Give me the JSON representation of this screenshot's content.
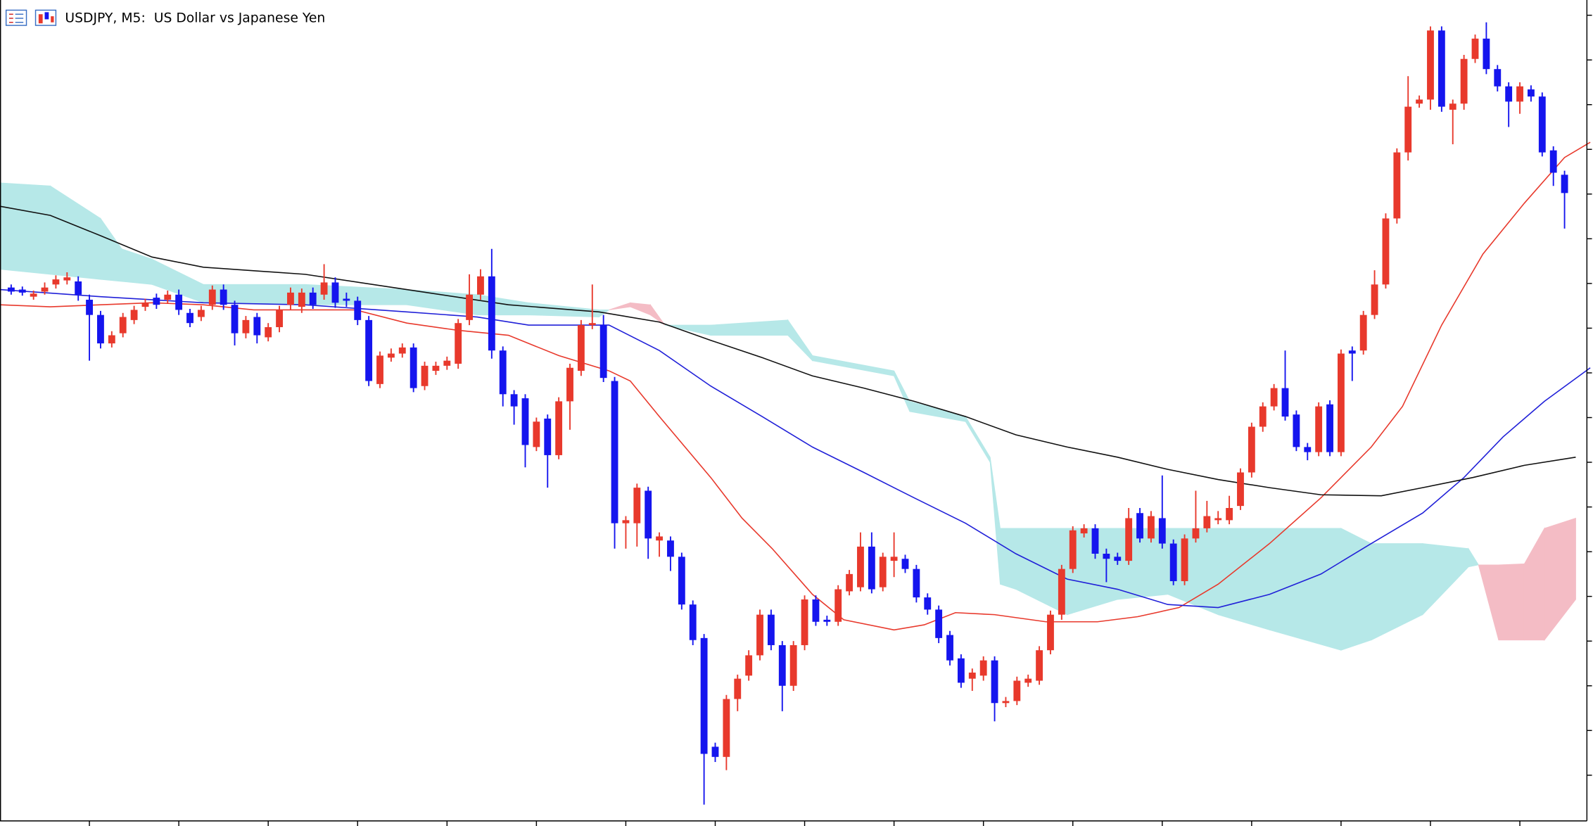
{
  "chart_data": {
    "type": "candlestick",
    "title": "USDJPY, M5:  US Dollar vs Japanese Yen",
    "up_color": "#e8392c",
    "down_color": "#1515ee",
    "xlim": [
      -1,
      141
    ],
    "ylim": [
      0,
      808
    ],
    "xticks": [
      7,
      15,
      23,
      31,
      39,
      47,
      55,
      63,
      71,
      79,
      87,
      95,
      103,
      111,
      119,
      127,
      135
    ],
    "yticks": [
      45,
      89,
      133,
      177,
      221,
      265,
      309,
      353,
      397,
      441,
      485,
      529,
      573,
      617,
      661,
      705,
      749,
      793
    ],
    "grid": false,
    "ohlc": [
      [
        525,
        528,
        518,
        521
      ],
      [
        523,
        526,
        517,
        520
      ],
      [
        516,
        522,
        513,
        519
      ],
      [
        521,
        530,
        518,
        525
      ],
      [
        528,
        537,
        524,
        533
      ],
      [
        532,
        540,
        528,
        535
      ],
      [
        531,
        536,
        512,
        518
      ],
      [
        513,
        518,
        453,
        498
      ],
      [
        498,
        502,
        465,
        470
      ],
      [
        470,
        482,
        466,
        478
      ],
      [
        480,
        500,
        476,
        496
      ],
      [
        493,
        507,
        489,
        503
      ],
      [
        506,
        514,
        502,
        510
      ],
      [
        515,
        519,
        504,
        508
      ],
      [
        513,
        522,
        509,
        518
      ],
      [
        518,
        523,
        498,
        503
      ],
      [
        500,
        504,
        486,
        490
      ],
      [
        496,
        507,
        492,
        503
      ],
      [
        508,
        527,
        503,
        523
      ],
      [
        523,
        528,
        503,
        508
      ],
      [
        508,
        512,
        468,
        480
      ],
      [
        480,
        497,
        475,
        493
      ],
      [
        496,
        500,
        470,
        478
      ],
      [
        476,
        490,
        472,
        486
      ],
      [
        486,
        507,
        481,
        503
      ],
      [
        508,
        525,
        503,
        520
      ],
      [
        506,
        524,
        500,
        520
      ],
      [
        520,
        525,
        504,
        508
      ],
      [
        518,
        548,
        513,
        530
      ],
      [
        530,
        535,
        505,
        510
      ],
      [
        514,
        520,
        506,
        512
      ],
      [
        512,
        516,
        488,
        493
      ],
      [
        493,
        497,
        428,
        433
      ],
      [
        430,
        462,
        426,
        458
      ],
      [
        456,
        465,
        452,
        460
      ],
      [
        460,
        470,
        456,
        466
      ],
      [
        466,
        470,
        422,
        426
      ],
      [
        428,
        452,
        424,
        448
      ],
      [
        443,
        452,
        439,
        448
      ],
      [
        448,
        457,
        444,
        453
      ],
      [
        450,
        494,
        445,
        490
      ],
      [
        493,
        538,
        488,
        518
      ],
      [
        518,
        543,
        513,
        536
      ],
      [
        536,
        563,
        455,
        463
      ],
      [
        463,
        467,
        408,
        420
      ],
      [
        420,
        424,
        390,
        408
      ],
      [
        416,
        420,
        348,
        370
      ],
      [
        368,
        397,
        364,
        393
      ],
      [
        396,
        400,
        328,
        360
      ],
      [
        360,
        417,
        356,
        413
      ],
      [
        413,
        450,
        385,
        446
      ],
      [
        443,
        493,
        438,
        488
      ],
      [
        488,
        528,
        484,
        490
      ],
      [
        488,
        498,
        432,
        436
      ],
      [
        433,
        437,
        268,
        293
      ],
      [
        293,
        300,
        268,
        296
      ],
      [
        293,
        332,
        270,
        328
      ],
      [
        325,
        329,
        258,
        278
      ],
      [
        276,
        284,
        260,
        280
      ],
      [
        276,
        280,
        246,
        260
      ],
      [
        260,
        264,
        208,
        213
      ],
      [
        213,
        217,
        173,
        178
      ],
      [
        180,
        184,
        16,
        66
      ],
      [
        73,
        77,
        58,
        63
      ],
      [
        63,
        124,
        50,
        120
      ],
      [
        120,
        144,
        108,
        140
      ],
      [
        143,
        168,
        138,
        163
      ],
      [
        163,
        208,
        158,
        203
      ],
      [
        203,
        208,
        168,
        173
      ],
      [
        173,
        177,
        108,
        133
      ],
      [
        133,
        177,
        128,
        173
      ],
      [
        173,
        222,
        168,
        218
      ],
      [
        218,
        222,
        192,
        196
      ],
      [
        198,
        202,
        192,
        196
      ],
      [
        196,
        232,
        192,
        228
      ],
      [
        226,
        247,
        222,
        243
      ],
      [
        230,
        284,
        226,
        270
      ],
      [
        270,
        284,
        224,
        228
      ],
      [
        230,
        264,
        226,
        260
      ],
      [
        256,
        284,
        240,
        260
      ],
      [
        258,
        262,
        244,
        248
      ],
      [
        248,
        252,
        215,
        220
      ],
      [
        220,
        224,
        203,
        208
      ],
      [
        208,
        212,
        175,
        180
      ],
      [
        183,
        187,
        153,
        158
      ],
      [
        160,
        164,
        131,
        136
      ],
      [
        140,
        150,
        128,
        146
      ],
      [
        143,
        162,
        138,
        158
      ],
      [
        158,
        162,
        98,
        116
      ],
      [
        116,
        122,
        112,
        118
      ],
      [
        118,
        142,
        114,
        138
      ],
      [
        136,
        144,
        132,
        140
      ],
      [
        138,
        172,
        134,
        168
      ],
      [
        168,
        207,
        164,
        203
      ],
      [
        203,
        252,
        198,
        248
      ],
      [
        248,
        290,
        244,
        286
      ],
      [
        283,
        292,
        279,
        288
      ],
      [
        288,
        292,
        258,
        263
      ],
      [
        263,
        268,
        235,
        258
      ],
      [
        260,
        264,
        252,
        256
      ],
      [
        256,
        308,
        252,
        298
      ],
      [
        303,
        308,
        274,
        278
      ],
      [
        278,
        305,
        274,
        300
      ],
      [
        298,
        340,
        268,
        273
      ],
      [
        273,
        277,
        232,
        236
      ],
      [
        236,
        282,
        232,
        278
      ],
      [
        278,
        325,
        274,
        288
      ],
      [
        288,
        315,
        284,
        300
      ],
      [
        296,
        305,
        292,
        298
      ],
      [
        296,
        320,
        292,
        308
      ],
      [
        310,
        347,
        306,
        343
      ],
      [
        343,
        392,
        338,
        388
      ],
      [
        388,
        412,
        383,
        408
      ],
      [
        408,
        430,
        404,
        426
      ],
      [
        426,
        463,
        394,
        398
      ],
      [
        400,
        404,
        364,
        368
      ],
      [
        368,
        372,
        355,
        363
      ],
      [
        363,
        412,
        359,
        408
      ],
      [
        410,
        414,
        359,
        363
      ],
      [
        363,
        464,
        359,
        460
      ],
      [
        463,
        467,
        433,
        460
      ],
      [
        463,
        502,
        459,
        498
      ],
      [
        498,
        542,
        494,
        528
      ],
      [
        528,
        598,
        524,
        593
      ],
      [
        593,
        662,
        588,
        658
      ],
      [
        658,
        733,
        650,
        703
      ],
      [
        706,
        714,
        702,
        710
      ],
      [
        710,
        782,
        700,
        778
      ],
      [
        778,
        782,
        698,
        703
      ],
      [
        700,
        710,
        666,
        706
      ],
      [
        706,
        754,
        700,
        750
      ],
      [
        750,
        774,
        746,
        770
      ],
      [
        770,
        786,
        735,
        740
      ],
      [
        740,
        744,
        718,
        723
      ],
      [
        723,
        727,
        683,
        708
      ],
      [
        708,
        727,
        696,
        723
      ],
      [
        720,
        724,
        708,
        713
      ],
      [
        713,
        717,
        654,
        658
      ],
      [
        660,
        664,
        625,
        638
      ],
      [
        636,
        640,
        583,
        618
      ]
    ],
    "lines": [
      {
        "color": "#e8392c",
        "x": [
          -1,
          3.5,
          8,
          12.6,
          17.2,
          21.7,
          26.3,
          30.8,
          35.4,
          39.9,
          44.5,
          49,
          53.5,
          55.4,
          58,
          62.6,
          65.4,
          68.1,
          71.7,
          74.5,
          79,
          81.7,
          84.5,
          88,
          92.6,
          97.2,
          100.8,
          104.5,
          108,
          112.6,
          117.2,
          121.7,
          124.5,
          128,
          131.7,
          135.4,
          139,
          141.3
        ],
        "values": [
          508,
          506,
          508,
          510,
          508,
          503,
          503,
          503,
          490,
          483,
          478,
          458,
          443,
          433,
          398,
          338,
          298,
          268,
          223,
          198,
          188,
          193,
          205,
          203,
          196,
          196,
          201,
          210,
          233,
          273,
          318,
          368,
          408,
          488,
          558,
          608,
          653,
          668
        ]
      },
      {
        "color": "#2020d8",
        "x": [
          -1,
          8,
          17.2,
          26.3,
          35.4,
          41.7,
          46.3,
          53.5,
          58,
          62.6,
          67.2,
          71.7,
          76.3,
          80.8,
          85.4,
          89.9,
          94.5,
          99,
          103.5,
          108,
          112.6,
          117.2,
          121.7,
          126.3,
          130,
          133.5,
          137.2,
          141.3
        ],
        "values": [
          523,
          516,
          510,
          508,
          501,
          496,
          488,
          488,
          463,
          428,
          398,
          368,
          343,
          318,
          293,
          263,
          238,
          228,
          213,
          210,
          223,
          243,
          273,
          303,
          338,
          378,
          413,
          446
        ]
      },
      {
        "color": "#111111",
        "x": [
          -1,
          3.5,
          8,
          12.6,
          17.2,
          26.3,
          35.4,
          44.5,
          52.6,
          58,
          62.6,
          67.2,
          71.7,
          76.3,
          80.8,
          85.4,
          89.9,
          94.5,
          99,
          103.5,
          108,
          112.6,
          117.2,
          122.6,
          126.3,
          130.8,
          135.4,
          140
        ],
        "values": [
          605,
          596,
          576,
          555,
          545,
          538,
          523,
          508,
          501,
          491,
          473,
          456,
          438,
          426,
          413,
          398,
          380,
          368,
          358,
          346,
          336,
          328,
          321,
          320,
          328,
          338,
          350,
          358
        ]
      }
    ],
    "cloud": {
      "up_color": "#b6e8e8",
      "down_color": "#f4bcc5",
      "x": [
        -1,
        3.5,
        8,
        9.9,
        12.6,
        17.2,
        26.3,
        35.4,
        41.7,
        46.3,
        52.6,
        53.5,
        55.4,
        57.2,
        58.5,
        62.6,
        69.5,
        71.7,
        79,
        80.4,
        85.4,
        87.6,
        88.5,
        89.9,
        94.5,
        99,
        103.5,
        108,
        112.6,
        119,
        121.7,
        126.3,
        130.4,
        131.3,
        133.1,
        135.4,
        137.2,
        140
      ],
      "span_a": [
        628,
        625,
        593,
        563,
        553,
        528,
        528,
        523,
        518,
        510,
        503,
        503,
        506,
        498,
        488,
        488,
        493,
        458,
        443,
        413,
        398,
        358,
        288,
        288,
        288,
        288,
        288,
        288,
        288,
        288,
        273,
        273,
        268,
        252,
        178,
        178,
        178,
        218
      ],
      "span_b": [
        543,
        538,
        533,
        531,
        528,
        510,
        508,
        508,
        498,
        498,
        496,
        503,
        510,
        508,
        488,
        478,
        478,
        453,
        438,
        403,
        393,
        353,
        233,
        228,
        203,
        218,
        223,
        203,
        188,
        168,
        178,
        203,
        250,
        252,
        252,
        253,
        288,
        298
      ]
    }
  }
}
